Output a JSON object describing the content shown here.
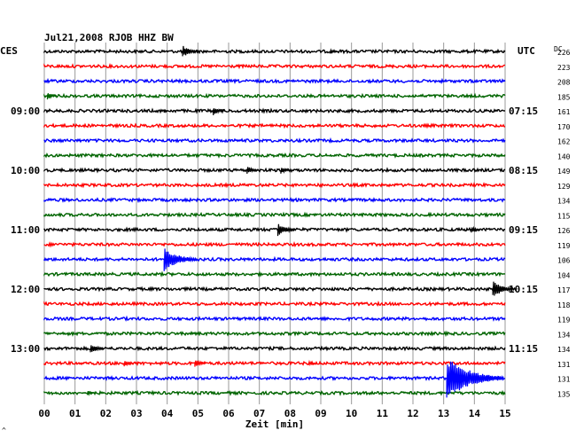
{
  "chart_data": {
    "type": "line",
    "title": "Jul21,2008  RJOB HHZ BW",
    "left_label": "CES",
    "right_label": "UTC",
    "dc_header": "DC",
    "xlabel": "Zeit [min]",
    "x_ticks": [
      "00",
      "01",
      "02",
      "03",
      "04",
      "05",
      "06",
      "07",
      "08",
      "09",
      "10",
      "11",
      "12",
      "13",
      "14",
      "15"
    ],
    "xlim": [
      0,
      15
    ],
    "grid": true,
    "trace_colors": [
      "#000000",
      "#ff0000",
      "#0000ff",
      "#006400"
    ],
    "left_times": [
      {
        "row": 4,
        "label": "09:00"
      },
      {
        "row": 8,
        "label": "10:00"
      },
      {
        "row": 12,
        "label": "11:00"
      },
      {
        "row": 16,
        "label": "12:00"
      },
      {
        "row": 20,
        "label": "13:00"
      }
    ],
    "right_times": [
      {
        "row": 4,
        "label": "07:15"
      },
      {
        "row": 8,
        "label": "08:15"
      },
      {
        "row": 12,
        "label": "09:15"
      },
      {
        "row": 16,
        "label": "10:15"
      },
      {
        "row": 20,
        "label": "11:15"
      }
    ],
    "dc_values": [
      "226",
      "223",
      "208",
      "185",
      "161",
      "170",
      "162",
      "140",
      "149",
      "129",
      "134",
      "115",
      "126",
      "119",
      "106",
      "104",
      "117",
      "118",
      "119",
      "134",
      "134",
      "131",
      "131",
      "135"
    ],
    "events": [
      {
        "row": 0,
        "minute": 4.5,
        "amplitude": 7
      },
      {
        "row": 0,
        "minute": 9.3,
        "amplitude": 3
      },
      {
        "row": 3,
        "minute": 0.1,
        "amplitude": 4
      },
      {
        "row": 4,
        "minute": 5.5,
        "amplitude": 5
      },
      {
        "row": 4,
        "minute": 3.9,
        "amplitude": 2
      },
      {
        "row": 8,
        "minute": 6.6,
        "amplitude": 5
      },
      {
        "row": 8,
        "minute": 7.7,
        "amplitude": 4
      },
      {
        "row": 12,
        "minute": 7.6,
        "amplitude": 8
      },
      {
        "row": 12,
        "minute": 13.9,
        "amplitude": 4
      },
      {
        "row": 14,
        "minute": 3.9,
        "amplitude": 14
      },
      {
        "row": 16,
        "minute": 14.6,
        "amplitude": 10
      },
      {
        "row": 20,
        "minute": 1.5,
        "amplitude": 6
      },
      {
        "row": 21,
        "minute": 2.6,
        "amplitude": 4
      },
      {
        "row": 21,
        "minute": 4.9,
        "amplitude": 5
      },
      {
        "row": 21,
        "minute": 8.6,
        "amplitude": 3
      },
      {
        "row": 22,
        "minute": 13.1,
        "amplitude": 24
      },
      {
        "row": 23,
        "minute": 1.4,
        "amplitude": 3
      }
    ],
    "footer_mark": "^"
  }
}
